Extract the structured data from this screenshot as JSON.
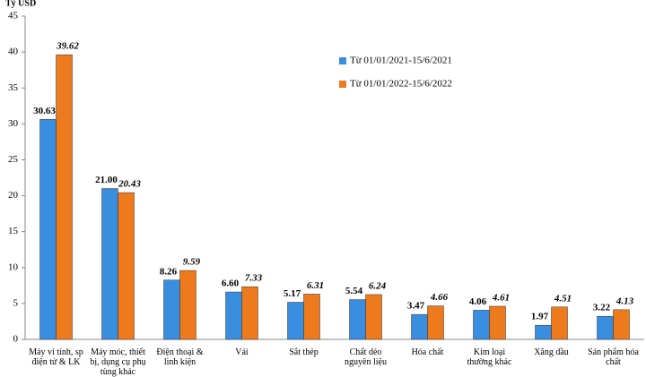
{
  "chart_data": {
    "type": "bar",
    "y_label": "Tỷ USD",
    "categories": [
      "Máy vi tính, sp điện tử & LK",
      "Máy móc, thiết bị, dụng cụ phụ tùng khác",
      "Điện thoại & linh kiện",
      "Vải",
      "Sắt thép",
      "Chất dẻo nguyên liệu",
      "Hóa chất",
      "Kim loại thường khác",
      "Xăng dầu",
      "Sản phẩm hóa chất"
    ],
    "series": [
      {
        "name": "Từ 01/01/2021-15/6/2021",
        "color": "#3a8ee0",
        "values": [
          30.63,
          21.0,
          8.26,
          6.6,
          5.17,
          5.54,
          3.47,
          4.06,
          1.97,
          3.22
        ],
        "value_labels": [
          "30.63",
          "21.00",
          "8.26",
          "6.60",
          "5.17",
          "5.54",
          "3.47",
          "4.06",
          "1.97",
          "3.22"
        ]
      },
      {
        "name": "Từ 01/01/2022-15/6/2022",
        "color": "#ee7a1e",
        "values": [
          39.62,
          20.43,
          9.59,
          7.33,
          6.31,
          6.24,
          4.66,
          4.61,
          4.51,
          4.13
        ],
        "value_labels": [
          "39.62",
          "20.43",
          "9.59",
          "7.33",
          "6.31",
          "6.24",
          "4.66",
          "4.61",
          "4.51",
          "4.13"
        ]
      }
    ],
    "ylim": [
      0,
      45
    ],
    "yticks": [
      0,
      5,
      10,
      15,
      20,
      25,
      30,
      35,
      40,
      45
    ],
    "grid": false
  }
}
